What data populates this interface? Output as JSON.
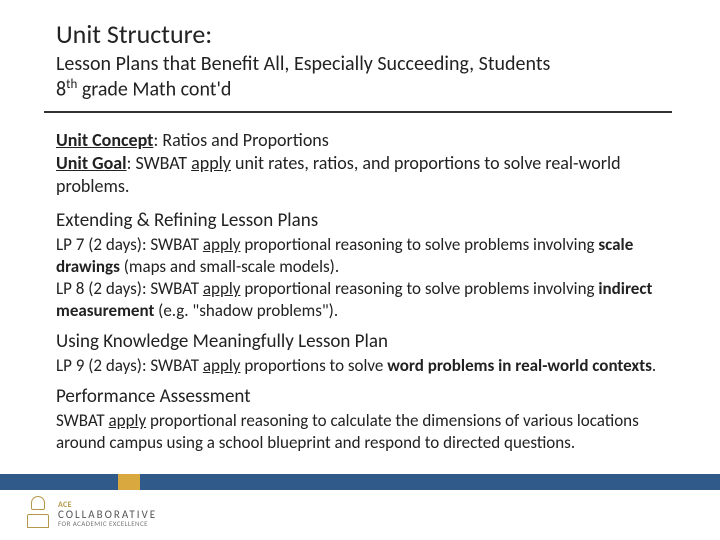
{
  "title": "Unit Structure:",
  "subtitle_l1": "Lesson Plans that Benefit All, Especially Succeeding, Students",
  "subtitle_l2a": "8",
  "subtitle_l2b": "th",
  "subtitle_l2c": " grade Math cont'd",
  "concept_label": "Unit Concept",
  "concept_text": ": Ratios and Proportions",
  "goal_label": "Unit Goal",
  "goal_pre": ": SWBAT ",
  "goal_apply": "apply",
  "goal_post": " unit rates, ratios, and proportions to solve real-world problems.",
  "sec1_heading": "Extending & Refining Lesson Plans",
  "lp7_pre": "LP 7 (2 days): SWBAT ",
  "lp7_apply": "apply",
  "lp7_mid": " proportional reasoning to solve problems involving ",
  "lp7_bold": "scale drawings",
  "lp7_post": " (maps and small-scale models).",
  "lp8_pre": "LP 8 (2 days): SWBAT ",
  "lp8_apply": "apply",
  "lp8_mid": " proportional reasoning to solve problems involving ",
  "lp8_bold": "indirect measurement",
  "lp8_post": " (e.g. \"shadow problems\").",
  "sec2_heading": "Using Knowledge Meaningfully Lesson Plan",
  "lp9_pre": "LP 9 (2 days): SWBAT ",
  "lp9_apply": "apply",
  "lp9_mid": " proportions to solve ",
  "lp9_bold": "word problems in real-world contexts",
  "lp9_post": ".",
  "sec3_heading": "Performance Assessment",
  "pa_pre": "SWBAT ",
  "pa_apply": "apply",
  "pa_post": " proportional reasoning to calculate the dimensions of various locations around campus using a school blueprint and respond to directed questions.",
  "logo_l1": "ACE",
  "logo_l2": "COLLABORATIVE",
  "logo_l3": "FOR ACADEMIC EXCELLENCE",
  "colors": {
    "footer_blue": "#2f5a8a",
    "footer_gold": "#d9a83e",
    "text": "#222222",
    "hr": "#333333",
    "logo_gold": "#b5984c"
  }
}
